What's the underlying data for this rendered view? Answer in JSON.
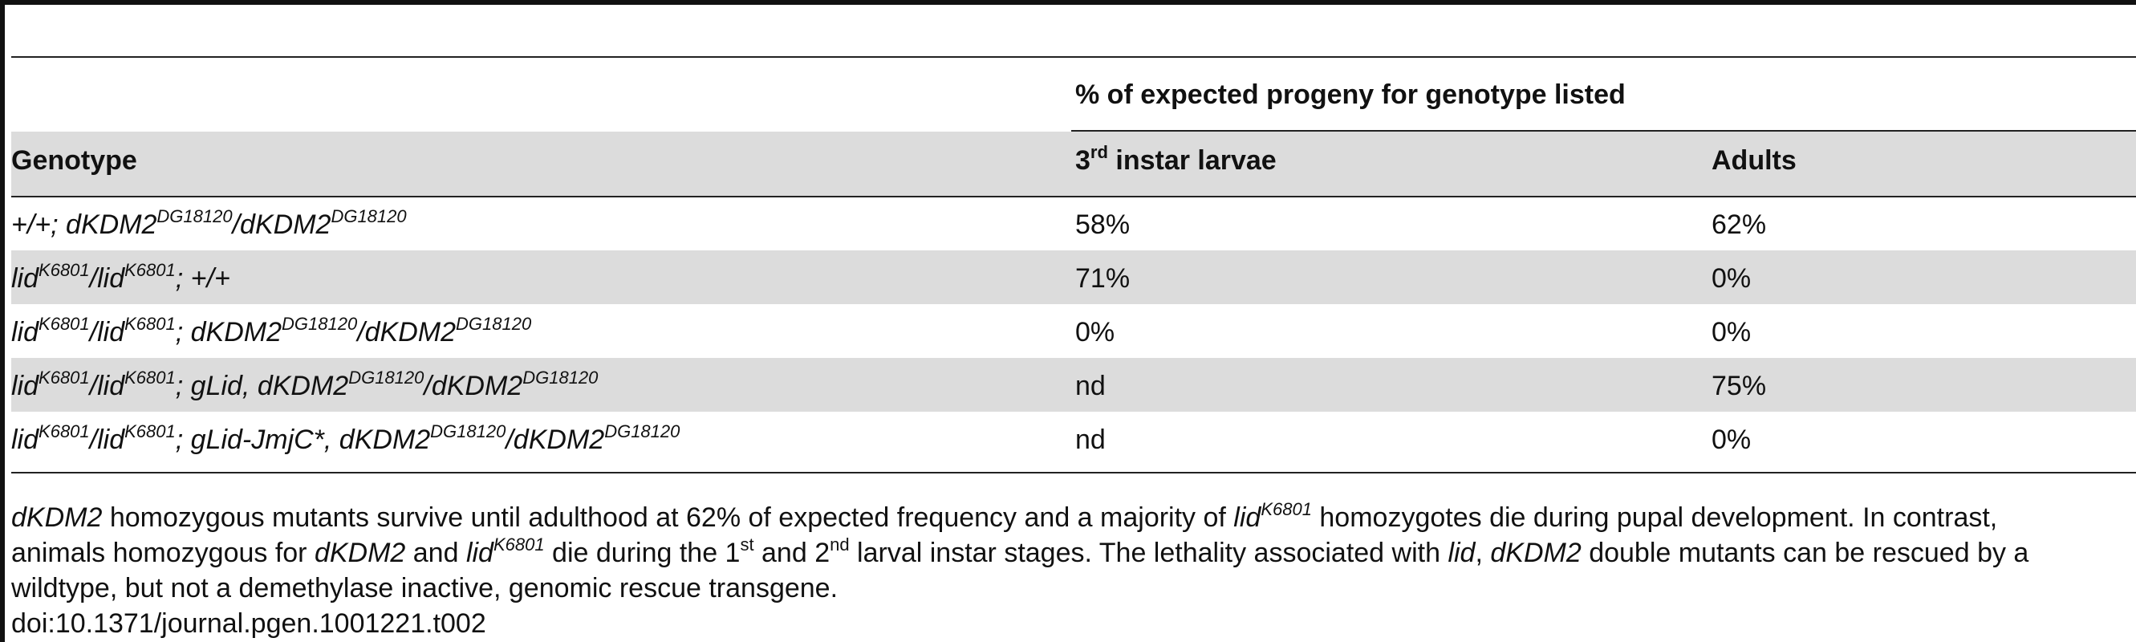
{
  "table": {
    "spanning_header": "% of expected progeny for genotype listed",
    "columns": {
      "genotype": "Genotype",
      "larvae": {
        "prefix": "3",
        "sup": "rd",
        "suffix": " instar larvae"
      },
      "adults": "Adults"
    },
    "rows": [
      {
        "genotype": {
          "a": "+/+; dKDM2",
          "b": "DG18120",
          "c": "/dKDM2",
          "d": "DG18120"
        },
        "larvae": "58%",
        "adults": "62%"
      },
      {
        "genotype": {
          "a": "lid",
          "b": "K6801",
          "c": "/lid",
          "d": "K6801",
          "e": "; +/+"
        },
        "larvae": "71%",
        "adults": "0%"
      },
      {
        "genotype": {
          "a": "lid",
          "b": "K6801",
          "c": "/lid",
          "d": "K6801",
          "e": "; dKDM2",
          "f": "DG18120",
          "g": "/dKDM2",
          "h": "DG18120"
        },
        "larvae": "0%",
        "adults": "0%"
      },
      {
        "genotype": {
          "a": "lid",
          "b": "K6801",
          "c": "/lid",
          "d": "K6801",
          "e": "; gLid, dKDM2",
          "f": "DG18120",
          "g": "/dKDM2",
          "h": "DG18120"
        },
        "larvae": "nd",
        "adults": "75%"
      },
      {
        "genotype": {
          "a": "lid",
          "b": "K6801",
          "c": "/lid",
          "d": "K6801",
          "e": "; gLid-JmjC*, dKDM2",
          "f": "DG18120",
          "g": "/dKDM2",
          "h": "DG18120"
        },
        "larvae": "nd",
        "adults": "0%"
      }
    ]
  },
  "footnote": {
    "line1": {
      "a": "dKDM2",
      "b": " homozygous mutants survive until adulthood at 62% of expected frequency and a majority of ",
      "c": "lid",
      "d": "K6801",
      "e": " homozygotes die during pupal development. In contrast,"
    },
    "line2": {
      "a": "animals homozygous for ",
      "b": "dKDM2",
      "c": " and ",
      "d": "lid",
      "e": "K6801",
      "f": " die during the 1",
      "g": "st",
      "h": " and 2",
      "i": "nd",
      "j": " larval instar stages. The lethality associated with ",
      "k": "lid",
      "l": ", ",
      "m": "dKDM2",
      "n": " double mutants can be rescued by a"
    },
    "line3": "wildtype, but not a demethylase inactive, genomic rescue transgene.",
    "doi": "doi:10.1371/journal.pgen.1001221.t002"
  }
}
